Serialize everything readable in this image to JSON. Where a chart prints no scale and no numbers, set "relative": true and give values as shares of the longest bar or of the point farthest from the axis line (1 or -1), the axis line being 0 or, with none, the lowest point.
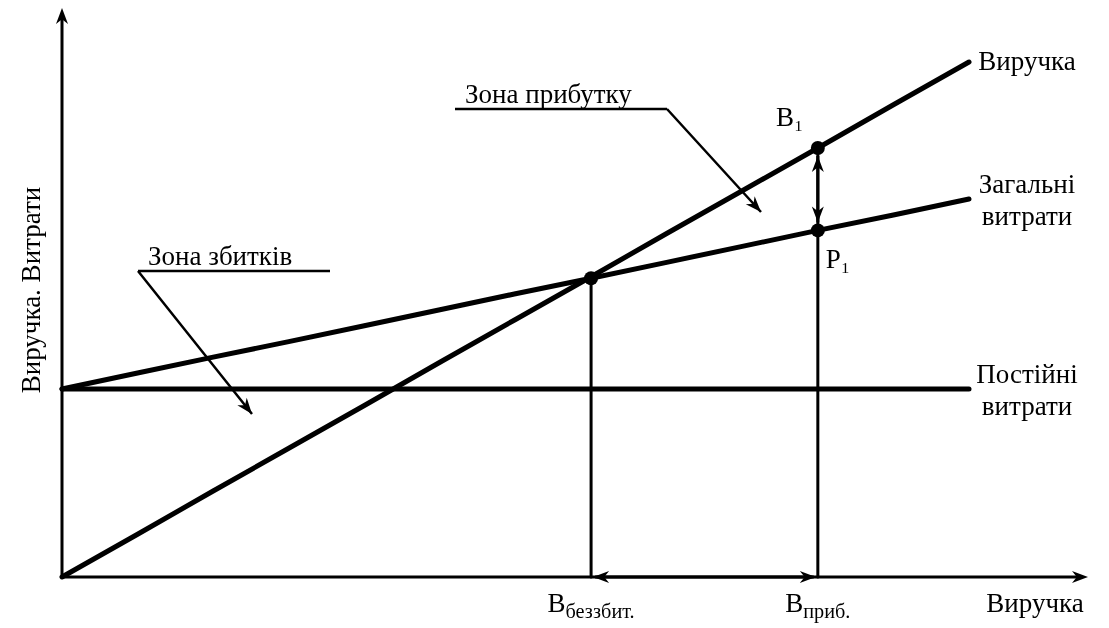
{
  "chart_data": {
    "type": "line",
    "relative": true,
    "xlabel": "Виручка",
    "ylabel": "Виручка. Витрати",
    "line_style": "solid",
    "categories": [
      null,
      null,
      null,
      null,
      null,
      null,
      null,
      "В$_{беззбит.}$",
      null,
      null,
      "В$_{приб.}$",
      null,
      null
    ],
    "series": [
      {
        "name": "Виручка",
        "color": "#000000",
        "values": [
          0,
          0.083,
          0.167,
          0.25,
          0.333,
          0.417,
          0.5,
          0.583,
          0.667,
          0.75,
          0.833,
          0.917,
          1
        ]
      },
      {
        "name": "Загальні витрати",
        "color": "#000000",
        "values": [
          0.365,
          0.396,
          0.427,
          0.457,
          0.488,
          0.519,
          0.55,
          0.58,
          0.611,
          0.642,
          0.673,
          0.703,
          0.734
        ]
      },
      {
        "name": "Постійні витрати",
        "color": "#000000",
        "values": [
          0.365,
          0.365,
          0.365,
          0.365,
          0.365,
          0.365,
          0.365,
          0.365,
          0.365,
          0.365,
          0.365,
          0.365,
          0.365
        ]
      },
      {
        "color": "#000000",
        "x": [
          "В$_{беззбит.}$",
          "В$_{беззбит.}$"
        ],
        "values": [
          0,
          0.58
        ]
      },
      {
        "color": "#000000",
        "x": [
          "В$_{приб.}$",
          "В$_{приб.}$"
        ],
        "values": [
          0,
          0.833
        ]
      },
      {
        "type": "scatter",
        "marker": "circle",
        "color": "#000000",
        "x": [
          "В$_{беззбит.}$",
          "В$_{приб.}$",
          "В$_{приб.}$"
        ],
        "values": [
          0.58,
          0.833,
          0.673
        ]
      }
    ],
    "annotations": [
      "Зона прибутку",
      "Зона збитків",
      {
        "text": "В₁",
        "x": "В$_{приб.}$",
        "y": 0.833
      },
      {
        "text": "Р₁",
        "x": "В$_{приб.}$",
        "y": 0.673
      }
    ]
  }
}
